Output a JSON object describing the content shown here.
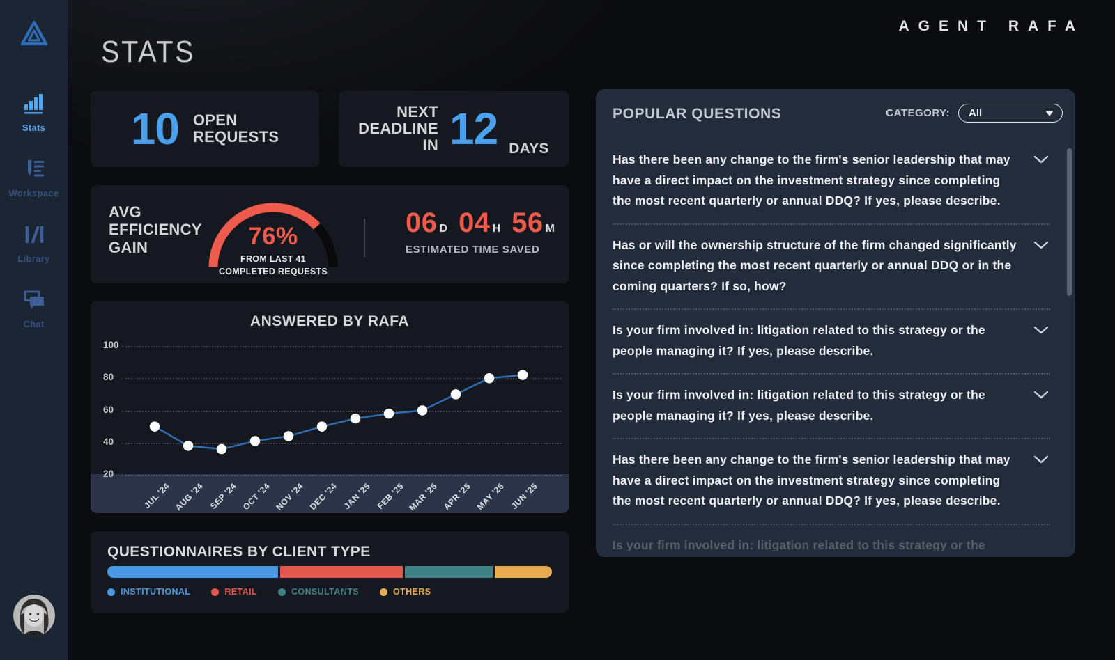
{
  "brand": "AGENT RAFA",
  "page_title": "STATS",
  "sidebar": {
    "items": [
      {
        "label": "Stats",
        "active": true
      },
      {
        "label": "Workspace",
        "active": false
      },
      {
        "label": "Library",
        "active": false
      },
      {
        "label": "Chat",
        "active": false
      }
    ]
  },
  "stats_cards": {
    "open_requests": {
      "value": "10",
      "label": "OPEN\nREQUESTS"
    },
    "next_deadline": {
      "label": "NEXT\nDEADLINE\nIN",
      "value": "12",
      "unit": "DAYS"
    },
    "efficiency_label": "AVG\nEFFICIENCY\nGAIN",
    "time_saved": {
      "segments": [
        {
          "value": "06",
          "unit": "D"
        },
        {
          "value": "04",
          "unit": "H"
        },
        {
          "value": "56",
          "unit": "M"
        }
      ],
      "caption": "ESTIMATED TIME SAVED"
    }
  },
  "chart_data": [
    {
      "type": "line",
      "title": "ANSWERED BY RAFA",
      "x": [
        "JUL '24",
        "AUG '24",
        "SEP '24",
        "OCT '24",
        "NOV '24",
        "DEC '24",
        "JAN '25",
        "FEB '25",
        "MAR '25",
        "APR '25",
        "MAY '25",
        "JUN '25"
      ],
      "values": [
        50,
        38,
        36,
        41,
        44,
        50,
        55,
        58,
        60,
        70,
        80,
        82
      ],
      "yticks": [
        100,
        80,
        60,
        40,
        20
      ],
      "ylim": [
        20,
        100
      ],
      "grid": "dotted-horizontal",
      "legend": "none",
      "line_color": "#2e6cb4",
      "point_color": "#ffffff"
    },
    {
      "type": "stacked-bar",
      "title": "QUESTIONNAIRES BY CLIENT TYPE",
      "unit": "percent",
      "series": [
        {
          "name": "INSTITUTIONAL",
          "value": 39,
          "color": "#4a97e3"
        },
        {
          "name": "RETAIL",
          "value": 28,
          "color": "#e2584c"
        },
        {
          "name": "CONSULTANTS",
          "value": 20,
          "color": "#3e8083"
        },
        {
          "name": "OTHERS",
          "value": 13,
          "color": "#e6aa50"
        }
      ],
      "legend_position": "bottom"
    },
    {
      "type": "gauge",
      "title": "AVG EFFICIENCY GAIN",
      "value": 76,
      "range": [
        0,
        100
      ],
      "value_label": "76%",
      "caption": "FROM LAST 41\nCOMPLETED REQUESTS",
      "fill_color": "#ee5a4c",
      "track_color": "#0a0a0d"
    }
  ],
  "questions_panel": {
    "title": "POPULAR QUESTIONS",
    "category_label": "CATEGORY:",
    "category_value": "All",
    "questions": [
      "Has there been any change to the firm's senior leadership that may have a direct impact on the investment strategy since completing the most recent quarterly or annual DDQ? If yes, please describe.",
      "Has or will the ownership structure of the firm changed significantly since completing the most recent quarterly or annual DDQ or in the coming quarters? If so, how?",
      "Is your firm involved in: litigation related to this strategy or the people managing it? If yes, please describe.",
      "Is your firm involved in: litigation related to this strategy or the people managing it? If yes, please describe.",
      "Has there been any change to the firm's senior leadership that may have a direct impact on the investment strategy since completing the most recent quarterly or annual DDQ? If yes, please describe.",
      "Is your firm involved in: litigation related to this strategy or the people managing it? If yes, please describe."
    ]
  }
}
